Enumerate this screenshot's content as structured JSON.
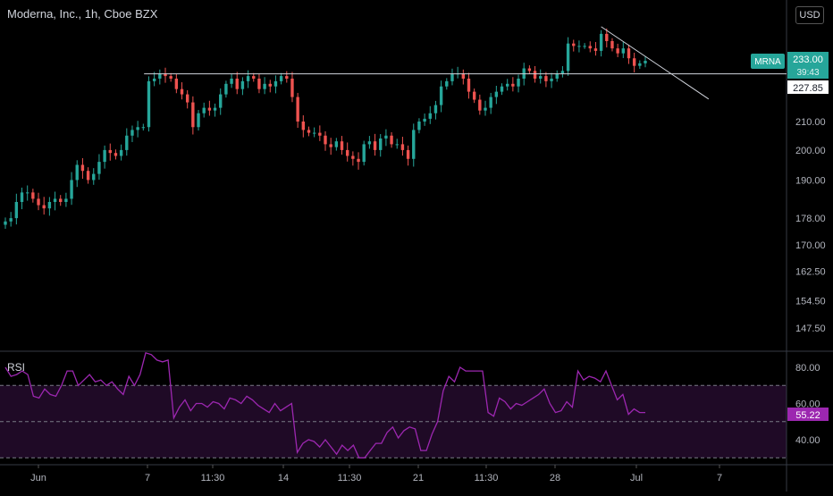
{
  "header": {
    "title": "Moderna, Inc., 1h, Cboe BZX",
    "currency": "USD"
  },
  "colors": {
    "up": "#26a69a",
    "down": "#ef5350",
    "rsi": "#9c27b0",
    "rsi_band": "#1f0a26",
    "badge_rsi": "#9c27b0",
    "badge_symbol": "#26a69a"
  },
  "price_axis": {
    "ticks": [
      "210.00",
      "200.00",
      "190.00",
      "178.00",
      "170.00",
      "162.50",
      "154.50",
      "147.50"
    ]
  },
  "rsi_axis": {
    "ticks": [
      "80.00",
      "60.00",
      "40.00"
    ]
  },
  "time_axis": {
    "labels": [
      "Jun",
      "7",
      "11:30",
      "14",
      "11:30",
      "21",
      "11:30",
      "28",
      "Jul",
      "7"
    ]
  },
  "badges": {
    "symbol": "MRNA",
    "last_price": "233.00",
    "countdown": "39:43",
    "level": "227.85",
    "rsi_value": "55.22"
  },
  "rsi_panel": {
    "label": "RSI"
  },
  "chart_data": [
    {
      "type": "candlestick",
      "title": "Moderna, Inc., 1h, Cboe BZX",
      "ylabel": "USD",
      "ylim": [
        144,
        244
      ],
      "y_scale": "log",
      "x_labels": [
        "Jun",
        "7",
        "11:30",
        "14",
        "11:30",
        "21",
        "11:30",
        "28",
        "Jul",
        "7"
      ],
      "closes": [
        177,
        178,
        183,
        186,
        186,
        184,
        182,
        181,
        183,
        184,
        183,
        184,
        190,
        195,
        193,
        190,
        192,
        196,
        200,
        199,
        198,
        200,
        205,
        207,
        208,
        208,
        225,
        226,
        228,
        227,
        226,
        222,
        220,
        217,
        208,
        213,
        215,
        214,
        215,
        220,
        224,
        226,
        222,
        225,
        227,
        226,
        222,
        224,
        223,
        225,
        227,
        226,
        219,
        210,
        207,
        206,
        206,
        205,
        202,
        201,
        203,
        200,
        198,
        197,
        196,
        202,
        203,
        200,
        204,
        205,
        202,
        202,
        200,
        197,
        207,
        210,
        211,
        213,
        216,
        223,
        225,
        228,
        228,
        226,
        221,
        218,
        214,
        215,
        219,
        221,
        223,
        224,
        223,
        226,
        230,
        229,
        226,
        227,
        225,
        226,
        228,
        229,
        240,
        239,
        239,
        239,
        238,
        237,
        244,
        241,
        238,
        236,
        238,
        234,
        231,
        232,
        233
      ],
      "horizontal_line": 227.85,
      "trendline": [
        {
          "x": 108,
          "y": 247
        },
        {
          "x": 121,
          "y": 224
        }
      ]
    },
    {
      "type": "line",
      "title": "RSI",
      "ylim": [
        26,
        89
      ],
      "bands": [
        70,
        50,
        30
      ],
      "values": [
        80,
        75,
        76,
        78,
        76,
        64,
        63,
        68,
        65,
        64,
        70,
        78,
        78,
        70,
        73,
        76,
        72,
        73,
        70,
        72,
        68,
        65,
        75,
        70,
        76,
        88,
        87,
        84,
        83,
        84,
        52,
        58,
        62,
        56,
        60,
        60,
        58,
        61,
        60,
        57,
        63,
        62,
        60,
        64,
        62,
        59,
        57,
        55,
        60,
        56,
        58,
        60,
        33,
        38,
        40,
        39,
        36,
        40,
        36,
        32,
        37,
        34,
        37,
        30,
        30,
        34,
        38,
        38,
        44,
        47,
        41,
        45,
        47,
        46,
        34,
        34,
        43,
        50,
        67,
        75,
        72,
        80,
        78,
        78,
        78,
        78,
        55,
        53,
        63,
        61,
        57,
        60,
        59,
        61,
        63,
        65,
        68,
        60,
        55,
        56,
        61,
        58,
        78,
        73,
        75,
        74,
        72,
        78,
        70,
        62,
        65,
        54,
        57,
        55,
        55
      ]
    }
  ]
}
